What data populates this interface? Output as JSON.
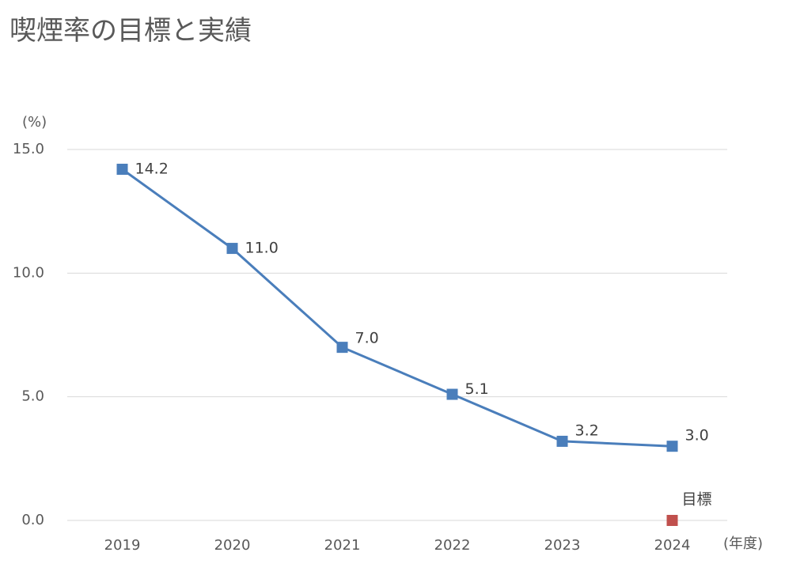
{
  "chart_data": {
    "type": "line",
    "title": "喫煙率の目標と実績",
    "y_label": "(%)",
    "x_label": "(年度)",
    "categories": [
      "2019",
      "2020",
      "2021",
      "2022",
      "2023",
      "2024"
    ],
    "series": [
      {
        "color": "#4a7ebb",
        "values": [
          14.2,
          11.0,
          7.0,
          5.1,
          3.2,
          3.0
        ],
        "value_labels": [
          "14.2",
          "11.0",
          "7.0",
          "5.1",
          "3.2",
          "3.0"
        ]
      },
      {
        "name": "目標",
        "color": "#c0504d",
        "values": [
          null,
          null,
          null,
          null,
          null,
          0
        ]
      }
    ],
    "ylim": [
      0,
      15
    ],
    "yticks": [
      {
        "value": 0,
        "label": "0.0"
      },
      {
        "value": 5,
        "label": "5.0"
      },
      {
        "value": 10,
        "label": "10.0"
      },
      {
        "value": 15,
        "label": "15.0"
      }
    ],
    "grid": true
  }
}
